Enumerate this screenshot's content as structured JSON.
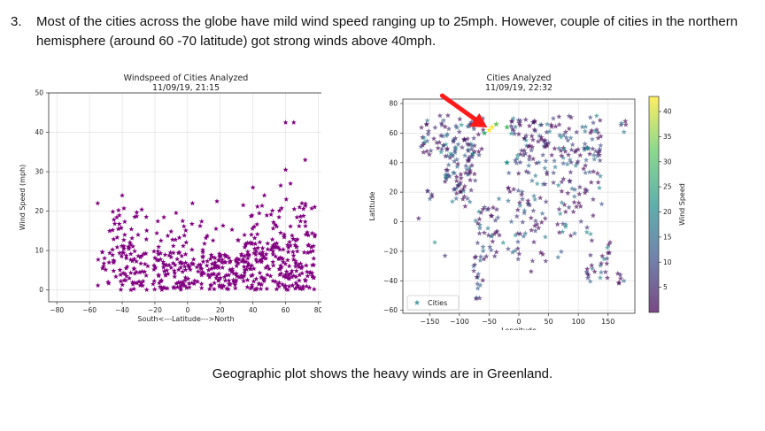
{
  "slide": {
    "number": "3.",
    "paragraph": "Most of the cities across the globe have mild wind speed ranging up to 25mph. However, couple of cities in the northern hemisphere (around 60 -70 latitude) got strong winds above 40mph.",
    "caption": "Geographic plot shows the heavy winds are in Greenland."
  },
  "chart_data": [
    {
      "type": "scatter",
      "title": "Windspeed of Cities Analyzed\n11/09/19, 21:15",
      "xlabel": "South<---Latitude--->North",
      "ylabel": "Wind Speed (mph)",
      "xlim": [
        -85,
        83
      ],
      "ylim": [
        -3,
        50
      ],
      "xticks": [
        "−80",
        "−60",
        "−40",
        "−20",
        "0",
        "20",
        "40",
        "60",
        "80"
      ],
      "yticks": [
        "0",
        "10",
        "20",
        "30",
        "40",
        "50"
      ],
      "grid": true,
      "marker": "star",
      "color": "#800080",
      "highlights": [
        {
          "x": 60,
          "y": 42.5
        },
        {
          "x": 65,
          "y": 42.5
        },
        {
          "x": 72,
          "y": 33
        },
        {
          "x": 60,
          "y": 30.5
        },
        {
          "x": 63,
          "y": 27
        },
        {
          "x": 57,
          "y": 26.5
        },
        {
          "x": 40,
          "y": 26
        },
        {
          "x": 47,
          "y": 24
        },
        {
          "x": -40,
          "y": 24
        },
        {
          "x": 18,
          "y": 22.5
        },
        {
          "x": -55,
          "y": 22
        },
        {
          "x": 3,
          "y": 22
        },
        {
          "x": 70,
          "y": 22
        },
        {
          "x": 78,
          "y": 14
        }
      ],
      "series": [
        {
          "density": [
            {
              "x0": -55,
              "x1": -48,
              "y0": 1,
              "y1": 10,
              "n": 12
            },
            {
              "x0": -48,
              "x1": -25,
              "y0": 0,
              "y1": 12,
              "n": 70
            },
            {
              "x0": -48,
              "x1": -25,
              "y0": 12,
              "y1": 21,
              "n": 28
            },
            {
              "x0": -25,
              "x1": 0,
              "y0": 0,
              "y1": 11,
              "n": 80
            },
            {
              "x0": -25,
              "x1": 0,
              "y0": 11,
              "y1": 20,
              "n": 18
            },
            {
              "x0": 0,
              "x1": 30,
              "y0": 0,
              "y1": 9,
              "n": 110
            },
            {
              "x0": 0,
              "x1": 30,
              "y0": 9,
              "y1": 18,
              "n": 14
            },
            {
              "x0": 30,
              "x1": 55,
              "y0": 0,
              "y1": 12,
              "n": 110
            },
            {
              "x0": 30,
              "x1": 55,
              "y0": 12,
              "y1": 22,
              "n": 24
            },
            {
              "x0": 55,
              "x1": 78,
              "y0": 0,
              "y1": 14,
              "n": 110
            },
            {
              "x0": 55,
              "x1": 78,
              "y0": 14,
              "y1": 23,
              "n": 24
            }
          ]
        }
      ]
    },
    {
      "type": "scatter",
      "title": "Cities Analyzed\n11/09/19, 22:32",
      "xlabel": "Longitude",
      "ylabel": "Latitude",
      "xlim": [
        -195,
        195
      ],
      "ylim": [
        -62,
        83
      ],
      "xticks": [
        "−150",
        "−100",
        "−50",
        "0",
        "50",
        "100",
        "150"
      ],
      "yticks": [
        "−60",
        "−40",
        "−20",
        "0",
        "20",
        "40",
        "60",
        "80"
      ],
      "grid": true,
      "marker": "star",
      "legend": {
        "label": "Cities",
        "placement": "lower-left"
      },
      "colorbar": {
        "label": "Wind Speed",
        "range": [
          0,
          43
        ],
        "ticks": [
          "5",
          "10",
          "15",
          "20",
          "25",
          "30",
          "35",
          "40"
        ],
        "colormap": "viridis"
      },
      "annotation": {
        "type": "arrow",
        "color": "#ff1a1a",
        "points_to": {
          "x": -50,
          "y": 62
        }
      },
      "highlights": [
        {
          "x": -50,
          "y": 62,
          "w": 42.5
        },
        {
          "x": -45,
          "y": 64,
          "w": 42.5
        },
        {
          "x": -38,
          "y": 66,
          "w": 33
        },
        {
          "x": -20,
          "y": 64,
          "w": 30.5
        },
        {
          "x": -58,
          "y": 60,
          "w": 27
        },
        {
          "x": -20,
          "y": 40,
          "w": 22
        },
        {
          "x": 115,
          "y": 50,
          "w": 20
        }
      ],
      "regions": [
        {
          "lon": [
            -165,
            -60
          ],
          "lat": [
            45,
            72
          ],
          "n": 80
        },
        {
          "lon": [
            -125,
            -70
          ],
          "lat": [
            25,
            50
          ],
          "n": 55
        },
        {
          "lon": [
            -110,
            -80
          ],
          "lat": [
            10,
            25
          ],
          "n": 18
        },
        {
          "lon": [
            -80,
            -35
          ],
          "lat": [
            -35,
            10
          ],
          "n": 42
        },
        {
          "lon": [
            -75,
            -60
          ],
          "lat": [
            -55,
            -35
          ],
          "n": 10
        },
        {
          "lon": [
            -15,
            40
          ],
          "lat": [
            36,
            70
          ],
          "n": 55
        },
        {
          "lon": [
            -18,
            50
          ],
          "lat": [
            -35,
            35
          ],
          "n": 60
        },
        {
          "lon": [
            40,
            140
          ],
          "lat": [
            20,
            72
          ],
          "n": 110
        },
        {
          "lon": [
            65,
            125
          ],
          "lat": [
            -10,
            25
          ],
          "n": 30
        },
        {
          "lon": [
            113,
            153
          ],
          "lat": [
            -43,
            -12
          ],
          "n": 25
        },
        {
          "lon": [
            160,
            178
          ],
          "lat": [
            -47,
            -34
          ],
          "n": 6
        },
        {
          "lon": [
            -180,
            180
          ],
          "lat": [
            -25,
            20
          ],
          "n": 20
        },
        {
          "lon": [
            -160,
            -145
          ],
          "lat": [
            15,
            25
          ],
          "n": 5
        },
        {
          "lon": [
            170,
            180
          ],
          "lat": [
            60,
            70
          ],
          "n": 5
        }
      ]
    }
  ]
}
